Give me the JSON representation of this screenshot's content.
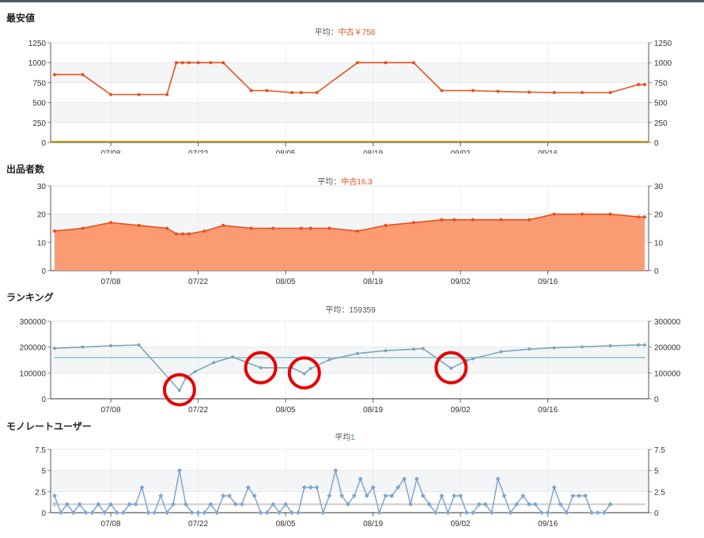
{
  "chart_data": [
    {
      "id": "min-price",
      "type": "line",
      "title": "最安値",
      "subtitle_label": "平均：",
      "subtitle_value": "中古￥758",
      "x_tick_labels": [
        "07/08",
        "07/22",
        "08/05",
        "08/19",
        "09/02",
        "09/16"
      ],
      "y_tick_labels": [
        "0",
        "250",
        "500",
        "750",
        "1000",
        "1250"
      ],
      "ylim": [
        0,
        1250
      ],
      "grid": true,
      "series": [
        {
          "name": "中古",
          "color": "#e8501a",
          "points": [
            [
              0,
              850
            ],
            [
              4.5,
              850
            ],
            [
              9,
              600
            ],
            [
              13.5,
              600
            ],
            [
              18,
              600
            ],
            [
              19.5,
              1000
            ],
            [
              20.5,
              1000
            ],
            [
              21.5,
              1000
            ],
            [
              23,
              1000
            ],
            [
              25,
              1000
            ],
            [
              27,
              1000
            ],
            [
              31.5,
              650
            ],
            [
              34,
              650
            ],
            [
              38,
              625
            ],
            [
              39.5,
              625
            ],
            [
              42,
              625
            ],
            [
              48.5,
              1000
            ],
            [
              53,
              1000
            ],
            [
              57.5,
              1000
            ],
            [
              62,
              650
            ],
            [
              67,
              650
            ],
            [
              71,
              640
            ],
            [
              76,
              630
            ],
            [
              80,
              625
            ],
            [
              84.5,
              625
            ],
            [
              89,
              625
            ],
            [
              93.5,
              725
            ],
            [
              94.5,
              725
            ]
          ]
        }
      ]
    },
    {
      "id": "seller-count",
      "type": "area",
      "title": "出品者数",
      "subtitle_label": "平均：",
      "subtitle_value": "中古16.3",
      "x_tick_labels": [
        "07/08",
        "07/22",
        "08/05",
        "08/19",
        "09/02",
        "09/16"
      ],
      "y_tick_labels": [
        "0",
        "10",
        "20",
        "30"
      ],
      "ylim": [
        0,
        30
      ],
      "grid": true,
      "series": [
        {
          "name": "中古",
          "color": "#e8501a",
          "fill": "#fa9b74",
          "points": [
            [
              0,
              14
            ],
            [
              4.5,
              15
            ],
            [
              9,
              17
            ],
            [
              13.5,
              16
            ],
            [
              18,
              15
            ],
            [
              19.5,
              13
            ],
            [
              20.5,
              13
            ],
            [
              21.5,
              13
            ],
            [
              24,
              14
            ],
            [
              27,
              16
            ],
            [
              31.5,
              15
            ],
            [
              35,
              15
            ],
            [
              39.5,
              15
            ],
            [
              41,
              15
            ],
            [
              44,
              15
            ],
            [
              48.5,
              14
            ],
            [
              53,
              16
            ],
            [
              57.5,
              17
            ],
            [
              62,
              18
            ],
            [
              64,
              18
            ],
            [
              67,
              18
            ],
            [
              71.5,
              18
            ],
            [
              76,
              18
            ],
            [
              80,
              20
            ],
            [
              84.5,
              20
            ],
            [
              89,
              20
            ],
            [
              93.5,
              19
            ],
            [
              94.5,
              19
            ]
          ]
        }
      ]
    },
    {
      "id": "ranking",
      "type": "line",
      "title": "ランキング",
      "subtitle_label": "平均：",
      "subtitle_value": "159359",
      "x_tick_labels": [
        "07/08",
        "07/22",
        "08/05",
        "08/19",
        "09/02",
        "09/16"
      ],
      "y_tick_labels": [
        "0",
        "100000",
        "200000",
        "300000"
      ],
      "ylim": [
        0,
        300000
      ],
      "grid": true,
      "average_line": 159359,
      "highlight_circles": [
        [
          20,
          35000
        ],
        [
          33,
          120000
        ],
        [
          40,
          100000
        ],
        [
          63.5,
          120000
        ]
      ],
      "series": [
        {
          "name": "ランキング",
          "color": "#7aa7bd",
          "points": [
            [
              0,
              195000
            ],
            [
              4.5,
              200000
            ],
            [
              9,
              205000
            ],
            [
              13.5,
              208000
            ],
            [
              20,
              32000
            ],
            [
              21,
              80000
            ],
            [
              22.5,
              105000
            ],
            [
              25.5,
              140000
            ],
            [
              28.5,
              162000
            ],
            [
              33,
              120000
            ],
            [
              38,
              120000
            ],
            [
              40,
              97000
            ],
            [
              41,
              117000
            ],
            [
              44,
              151000
            ],
            [
              48.5,
              175000
            ],
            [
              53,
              186000
            ],
            [
              57.5,
              192000
            ],
            [
              59,
              194000
            ],
            [
              63.5,
              118000
            ],
            [
              66,
              148000
            ],
            [
              67,
              155000
            ],
            [
              71.5,
              182000
            ],
            [
              76,
              192000
            ],
            [
              80,
              197000
            ],
            [
              84.5,
              201000
            ],
            [
              89,
              205000
            ],
            [
              93.5,
              208000
            ],
            [
              94.5,
              208000
            ]
          ]
        }
      ]
    },
    {
      "id": "monorate-users",
      "type": "line",
      "title": "モノレートユーザー",
      "subtitle_label": "平均",
      "subtitle_value": "1",
      "x_tick_labels": [
        "07/08",
        "07/22",
        "08/05",
        "08/19",
        "09/02",
        "09/16"
      ],
      "y_tick_labels": [
        "0",
        "2.5",
        "5",
        "7.5"
      ],
      "ylim": [
        0,
        7.5
      ],
      "grid": true,
      "average_line": 1,
      "series": [
        {
          "name": "モノレートユーザー",
          "color": "#7fa6d0",
          "points": [
            [
              0,
              2
            ],
            [
              1,
              0
            ],
            [
              2,
              1
            ],
            [
              3,
              0
            ],
            [
              4,
              1
            ],
            [
              5,
              0
            ],
            [
              6,
              0
            ],
            [
              7,
              1
            ],
            [
              8,
              0
            ],
            [
              9,
              1
            ],
            [
              10,
              0
            ],
            [
              11,
              0
            ],
            [
              12,
              1
            ],
            [
              13,
              1
            ],
            [
              14,
              3
            ],
            [
              15,
              0
            ],
            [
              16,
              0
            ],
            [
              17,
              2
            ],
            [
              18,
              0
            ],
            [
              19,
              1
            ],
            [
              20,
              5
            ],
            [
              21,
              1
            ],
            [
              22,
              0
            ],
            [
              23,
              0
            ],
            [
              24,
              0
            ],
            [
              25,
              1
            ],
            [
              26,
              0
            ],
            [
              27,
              2
            ],
            [
              28,
              2
            ],
            [
              29,
              1
            ],
            [
              30,
              1
            ],
            [
              31,
              3
            ],
            [
              32,
              2
            ],
            [
              33,
              0
            ],
            [
              34,
              0
            ],
            [
              35,
              1
            ],
            [
              36,
              0
            ],
            [
              37,
              1
            ],
            [
              38,
              0
            ],
            [
              39,
              0
            ],
            [
              40,
              3
            ],
            [
              41,
              3
            ],
            [
              42,
              3
            ],
            [
              43,
              0
            ],
            [
              44,
              2
            ],
            [
              45,
              5
            ],
            [
              46,
              2
            ],
            [
              47,
              1
            ],
            [
              48,
              2
            ],
            [
              49,
              4
            ],
            [
              50,
              2
            ],
            [
              51,
              3
            ],
            [
              52,
              0
            ],
            [
              53,
              2
            ],
            [
              54,
              2
            ],
            [
              55,
              3
            ],
            [
              56,
              4
            ],
            [
              57,
              1
            ],
            [
              58,
              4
            ],
            [
              59,
              2
            ],
            [
              60,
              1
            ],
            [
              61,
              0
            ],
            [
              62,
              2
            ],
            [
              63,
              0
            ],
            [
              64,
              2
            ],
            [
              65,
              2
            ],
            [
              66,
              0
            ],
            [
              67,
              0
            ],
            [
              68,
              1
            ],
            [
              69,
              1
            ],
            [
              70,
              0
            ],
            [
              71,
              4
            ],
            [
              72,
              2
            ],
            [
              73,
              0
            ],
            [
              74,
              1
            ],
            [
              75,
              2
            ],
            [
              76,
              1
            ],
            [
              77,
              1
            ],
            [
              78,
              0
            ],
            [
              79,
              0
            ],
            [
              80,
              3
            ],
            [
              81,
              1
            ],
            [
              82,
              0
            ],
            [
              83,
              2
            ],
            [
              84,
              2
            ],
            [
              85,
              2
            ],
            [
              86,
              0
            ],
            [
              87,
              0
            ],
            [
              88,
              0
            ],
            [
              89,
              1
            ]
          ]
        }
      ]
    }
  ]
}
